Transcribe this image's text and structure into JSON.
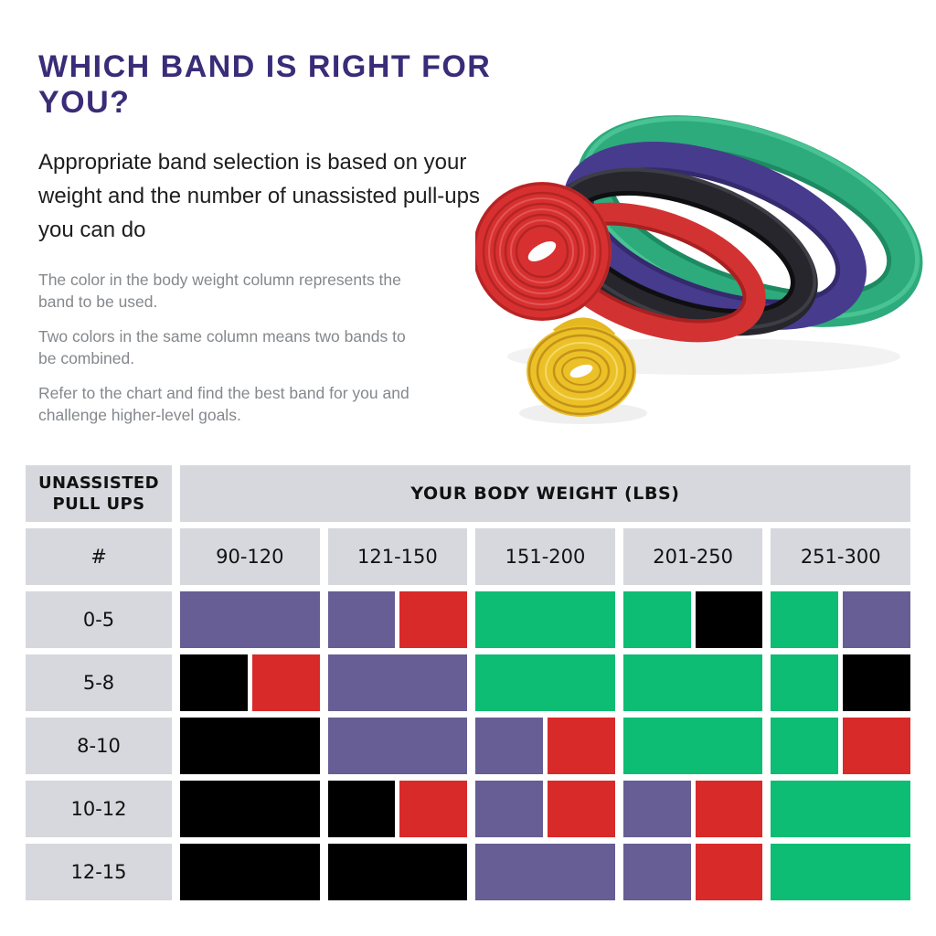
{
  "page": {
    "title": "WHICH BAND IS RIGHT FOR YOU?",
    "subtitle": "Appropriate band selection is based on your\nweight and the number of unassisted pull-ups\nyou can do",
    "notes": [
      "The color in the body weight column represents the\nband to be used.",
      "Two colors in the same column means two bands to\nbe combined.",
      "Refer to the chart and find the best band for you and\nchallenge higher-level goals."
    ],
    "title_color": "#3a2c78",
    "note_color": "#84888c"
  },
  "photo": {
    "bands_shown": [
      "red",
      "black",
      "purple",
      "green",
      "yellow"
    ]
  },
  "chart_data": {
    "type": "table",
    "title": "YOUR BODY WEIGHT (LBS)",
    "row_axis": "UNASSISTED\nPULL UPS",
    "hash_label": "#",
    "columns": [
      "90-120",
      "121-150",
      "151-200",
      "201-250",
      "251-300"
    ],
    "rows": [
      "0-5",
      "5-8",
      "8-10",
      "10-12",
      "12-15"
    ],
    "cells": [
      [
        [
          "purple"
        ],
        [
          "purple",
          "red"
        ],
        [
          "green"
        ],
        [
          "green",
          "black"
        ],
        [
          "green",
          "purple"
        ]
      ],
      [
        [
          "black",
          "red"
        ],
        [
          "purple"
        ],
        [
          "green"
        ],
        [
          "green"
        ],
        [
          "green",
          "black"
        ]
      ],
      [
        [
          "black"
        ],
        [
          "purple"
        ],
        [
          "purple",
          "red"
        ],
        [
          "green"
        ],
        [
          "green",
          "red"
        ]
      ],
      [
        [
          "black"
        ],
        [
          "black",
          "red"
        ],
        [
          "purple",
          "red"
        ],
        [
          "purple",
          "red"
        ],
        [
          "green"
        ]
      ],
      [
        [
          "black"
        ],
        [
          "black"
        ],
        [
          "purple"
        ],
        [
          "purple",
          "red"
        ],
        [
          "green"
        ]
      ]
    ],
    "band_colors": {
      "purple": "#665e94",
      "red": "#d92a2a",
      "green": "#0dbd74",
      "black": "#000000"
    },
    "header_bg": "#d7d8dd",
    "legend_note": "cell lists band color(s) to use; two colors = combine two bands"
  }
}
